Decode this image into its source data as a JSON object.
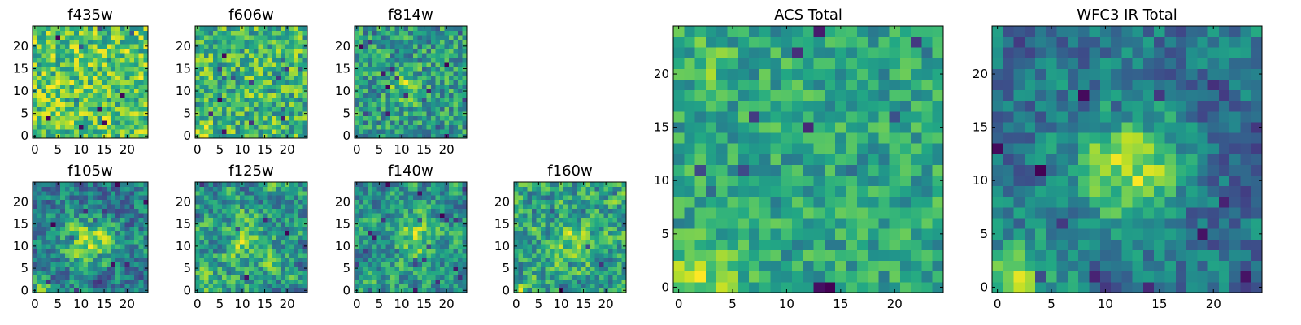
{
  "figure": {
    "background": "#ffffff",
    "colormap": "viridis"
  },
  "chart_data": [
    {
      "type": "heatmap",
      "title": "f435w",
      "xticks": [
        0,
        5,
        10,
        15,
        20
      ],
      "yticks": [
        0,
        5,
        10,
        15,
        20
      ],
      "xlim": [
        0,
        24
      ],
      "ylim": [
        0,
        24
      ],
      "grid_size": 25,
      "seed": 11,
      "smooth": 0,
      "noise": 0.35,
      "base": 0.7,
      "blobs": []
    },
    {
      "type": "heatmap",
      "title": "f606w",
      "xticks": [
        0,
        5,
        10,
        15,
        20
      ],
      "yticks": [
        0,
        5,
        10,
        15,
        20
      ],
      "xlim": [
        0,
        24
      ],
      "ylim": [
        0,
        24
      ],
      "grid_size": 25,
      "seed": 23,
      "smooth": 0,
      "noise": 0.4,
      "base": 0.55,
      "blobs": [
        {
          "x": 1,
          "y": 1,
          "r": 1.5,
          "a": 0.5
        }
      ]
    },
    {
      "type": "heatmap",
      "title": "f814w",
      "xticks": [
        0,
        5,
        10,
        15,
        20
      ],
      "yticks": [
        0,
        5,
        10,
        15,
        20
      ],
      "xlim": [
        0,
        24
      ],
      "ylim": [
        0,
        24
      ],
      "grid_size": 25,
      "seed": 37,
      "smooth": 0,
      "noise": 0.4,
      "base": 0.55,
      "blobs": [
        {
          "x": 11,
          "y": 11,
          "r": 2.5,
          "a": 0.35
        }
      ]
    },
    {
      "type": "heatmap",
      "title": "f105w",
      "xticks": [
        0,
        5,
        10,
        15,
        20
      ],
      "yticks": [
        0,
        5,
        10,
        15,
        20
      ],
      "xlim": [
        0,
        24
      ],
      "ylim": [
        0,
        24
      ],
      "grid_size": 25,
      "seed": 41,
      "smooth": 1,
      "noise": 0.4,
      "base": 0.6,
      "blobs": [
        {
          "x": 12,
          "y": 11,
          "r": 4,
          "a": 0.45
        },
        {
          "x": 2,
          "y": 0,
          "r": 2,
          "a": 0.35
        }
      ]
    },
    {
      "type": "heatmap",
      "title": "f125w",
      "xticks": [
        0,
        5,
        10,
        15,
        20
      ],
      "yticks": [
        0,
        5,
        10,
        15,
        20
      ],
      "xlim": [
        0,
        24
      ],
      "ylim": [
        0,
        24
      ],
      "grid_size": 25,
      "seed": 53,
      "smooth": 1,
      "noise": 0.45,
      "base": 0.55,
      "blobs": [
        {
          "x": 12,
          "y": 10,
          "r": 3.5,
          "a": 0.25
        },
        {
          "x": 2,
          "y": 0,
          "r": 2,
          "a": 0.3
        }
      ]
    },
    {
      "type": "heatmap",
      "title": "f140w",
      "xticks": [
        0,
        5,
        10,
        15,
        20
      ],
      "yticks": [
        0,
        5,
        10,
        15,
        20
      ],
      "xlim": [
        0,
        24
      ],
      "ylim": [
        0,
        24
      ],
      "grid_size": 25,
      "seed": 67,
      "smooth": 1,
      "noise": 0.45,
      "base": 0.55,
      "blobs": [
        {
          "x": 13,
          "y": 12,
          "r": 3.5,
          "a": 0.35
        },
        {
          "x": 2,
          "y": 0,
          "r": 2,
          "a": 0.35
        }
      ]
    },
    {
      "type": "heatmap",
      "title": "f160w",
      "xticks": [
        0,
        5,
        10,
        15,
        20
      ],
      "yticks": [
        0,
        5,
        10,
        15,
        20
      ],
      "xlim": [
        0,
        24
      ],
      "ylim": [
        0,
        24
      ],
      "grid_size": 25,
      "seed": 79,
      "smooth": 1,
      "noise": 0.45,
      "base": 0.55,
      "blobs": [
        {
          "x": 12,
          "y": 11,
          "r": 3,
          "a": 0.3
        },
        {
          "x": 2,
          "y": 0,
          "r": 2,
          "a": 0.3
        }
      ]
    },
    {
      "type": "heatmap",
      "title": "ACS Total",
      "xticks": [
        0,
        5,
        10,
        15,
        20
      ],
      "yticks": [
        0,
        5,
        10,
        15,
        20
      ],
      "xlim": [
        0,
        24
      ],
      "ylim": [
        0,
        24
      ],
      "grid_size": 25,
      "seed": 97,
      "smooth": 0,
      "noise": 0.28,
      "base": 0.68,
      "blobs": [
        {
          "x": 2,
          "y": 0,
          "r": 2.5,
          "a": 0.4
        },
        {
          "x": 3,
          "y": 21,
          "r": 1.5,
          "a": 0.2
        }
      ]
    },
    {
      "type": "heatmap",
      "title": "WFC3 IR Total",
      "xticks": [
        0,
        5,
        10,
        15,
        20
      ],
      "yticks": [
        0,
        5,
        10,
        15,
        20
      ],
      "xlim": [
        0,
        24
      ],
      "ylim": [
        0,
        24
      ],
      "grid_size": 25,
      "seed": 131,
      "smooth": 1,
      "noise": 0.35,
      "base": 0.55,
      "blobs": [
        {
          "x": 12,
          "y": 11,
          "r": 3.5,
          "a": 0.55
        },
        {
          "x": 2,
          "y": 1,
          "r": 2.5,
          "a": 0.5
        }
      ]
    }
  ]
}
